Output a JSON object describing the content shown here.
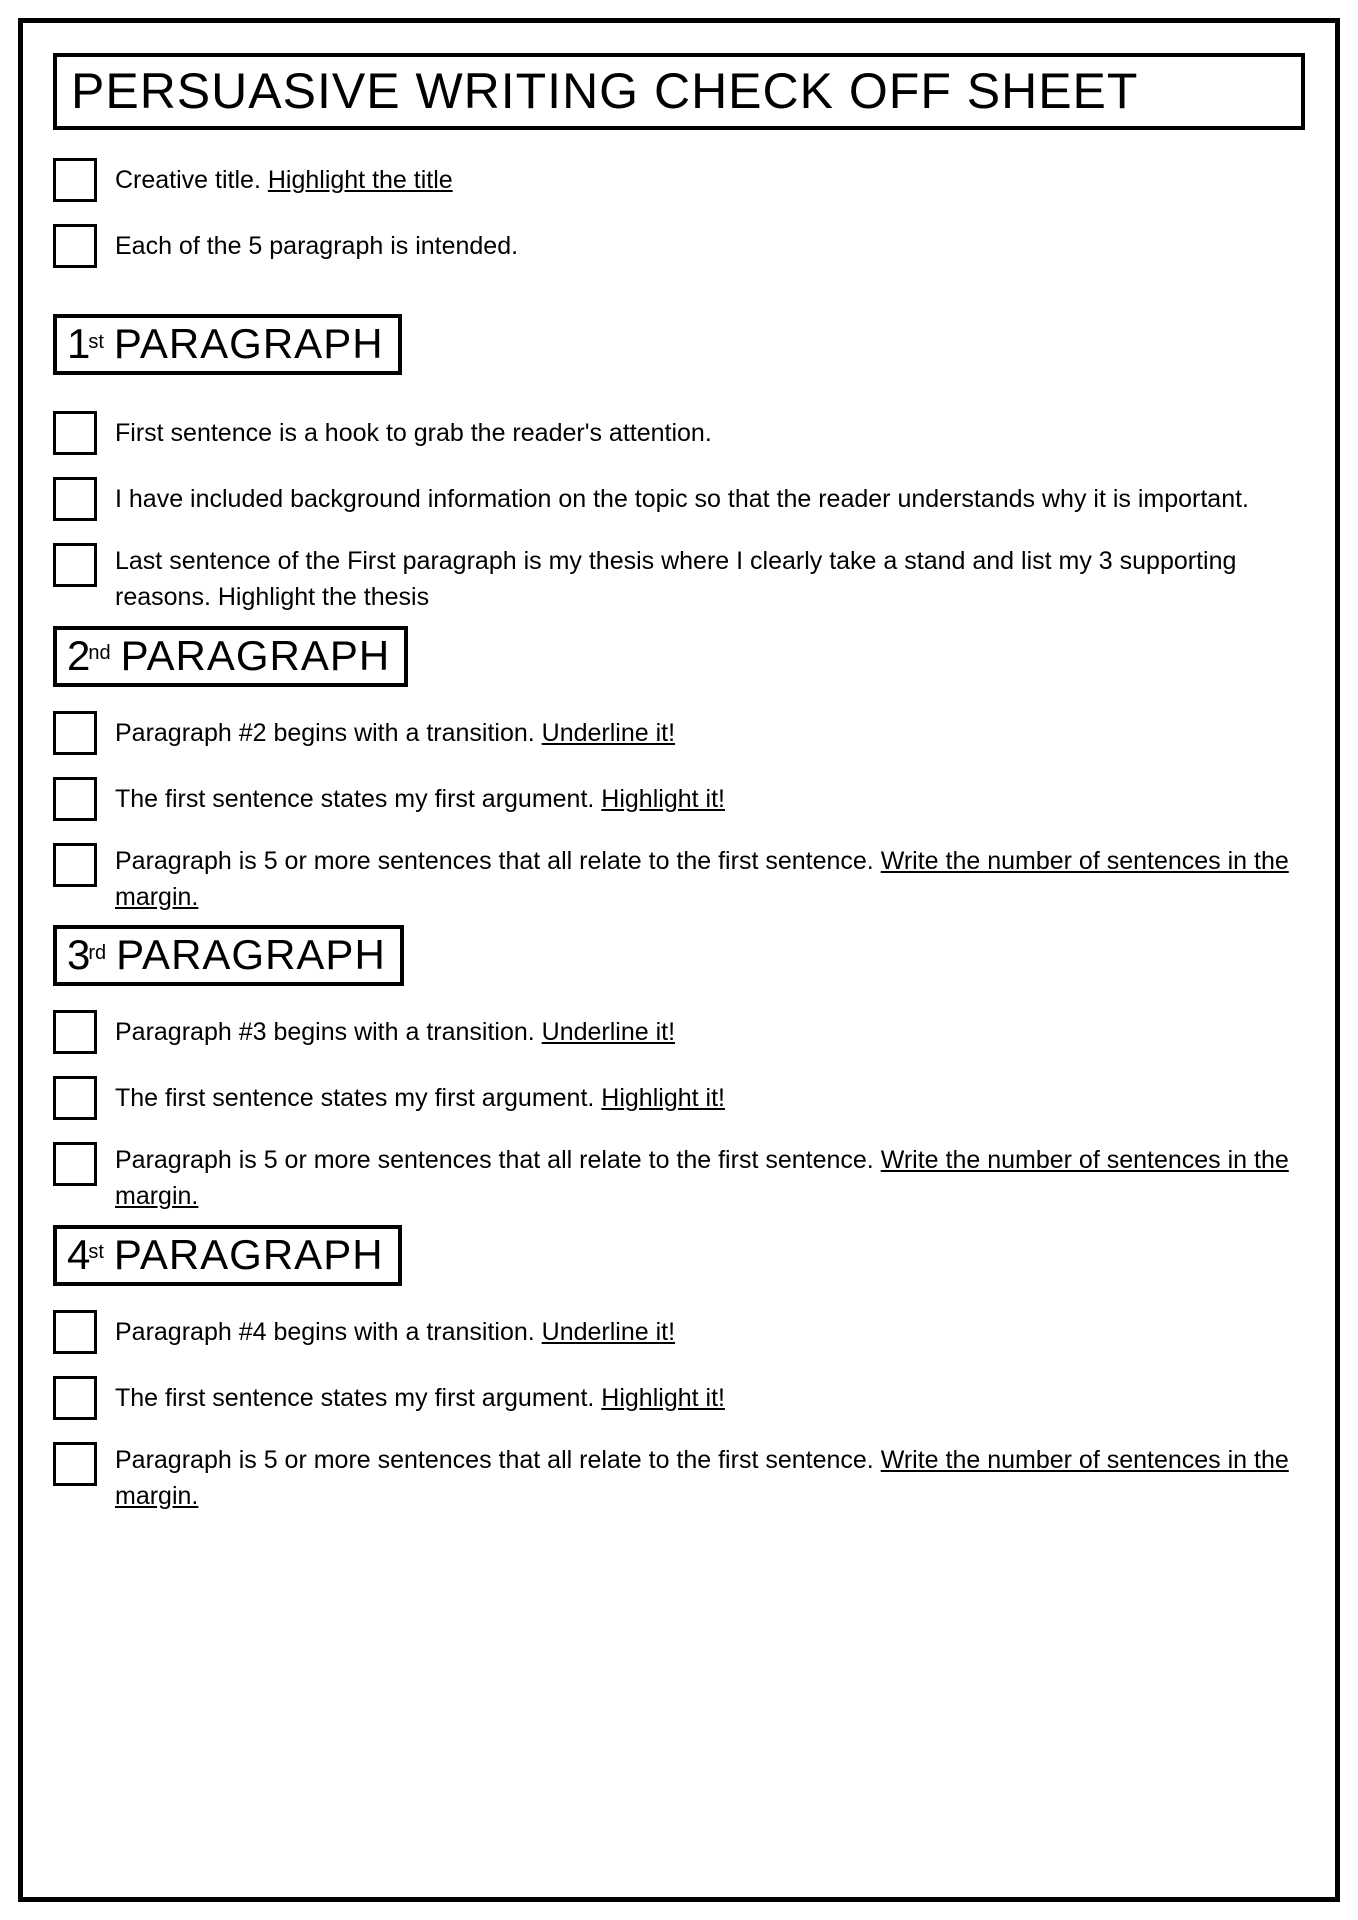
{
  "title": "PERSUASIVE WRITING CHECK OFF SHEET",
  "intro": [
    {
      "parts": [
        {
          "t": "Creative title. "
        },
        {
          "t": "Highlight the title",
          "u": true
        }
      ]
    },
    {
      "parts": [
        {
          "t": "Each of the 5 paragraph is intended."
        }
      ]
    }
  ],
  "sections": [
    {
      "num": "1",
      "ord": "st",
      "word": "PARAGRAPH",
      "items": [
        {
          "parts": [
            {
              "t": "First sentence is a hook to grab the reader's attention."
            }
          ]
        },
        {
          "parts": [
            {
              "t": "I have included background information on the topic so that the reader understands why it is important."
            }
          ]
        },
        {
          "parts": [
            {
              "t": "Last sentence of the First paragraph is my thesis where I clearly take a stand and list my 3 supporting reasons. Highlight the thesis"
            }
          ]
        }
      ]
    },
    {
      "num": "2",
      "ord": "nd",
      "word": "PARAGRAPH",
      "items": [
        {
          "parts": [
            {
              "t": "Paragraph #2 begins with a transition. "
            },
            {
              "t": "Underline it!",
              "u": true
            }
          ]
        },
        {
          "parts": [
            {
              "t": "The first sentence states my first argument. "
            },
            {
              "t": "Highlight it!",
              "u": true
            }
          ]
        },
        {
          "parts": [
            {
              "t": "Paragraph is 5 or more sentences that all relate to the first sentence. "
            },
            {
              "t": "Write the number of sentences in the margin.",
              "u": true
            }
          ]
        }
      ]
    },
    {
      "num": "3",
      "ord": "rd",
      "word": "PARAGRAPH",
      "items": [
        {
          "parts": [
            {
              "t": "Paragraph #3 begins with a transition. "
            },
            {
              "t": "Underline it!",
              "u": true
            }
          ]
        },
        {
          "parts": [
            {
              "t": "The first sentence states my first argument. "
            },
            {
              "t": "Highlight it!",
              "u": true
            }
          ]
        },
        {
          "parts": [
            {
              "t": "Paragraph is 5 or more sentences that all relate to the first sentence. "
            },
            {
              "t": "Write the number of sentences in the margin.",
              "u": true
            }
          ]
        }
      ]
    },
    {
      "num": "4",
      "ord": "st",
      "word": "PARAGRAPH",
      "items": [
        {
          "parts": [
            {
              "t": "Paragraph #4 begins with a transition. "
            },
            {
              "t": "Underline it!",
              "u": true
            }
          ]
        },
        {
          "parts": [
            {
              "t": "The first sentence states my first argument. "
            },
            {
              "t": "Highlight it!",
              "u": true
            }
          ]
        },
        {
          "parts": [
            {
              "t": "Paragraph is 5 or more sentences that all relate to the first sentence. "
            },
            {
              "t": "Write the number of sentences in the margin.",
              "u": true
            }
          ]
        }
      ]
    }
  ]
}
